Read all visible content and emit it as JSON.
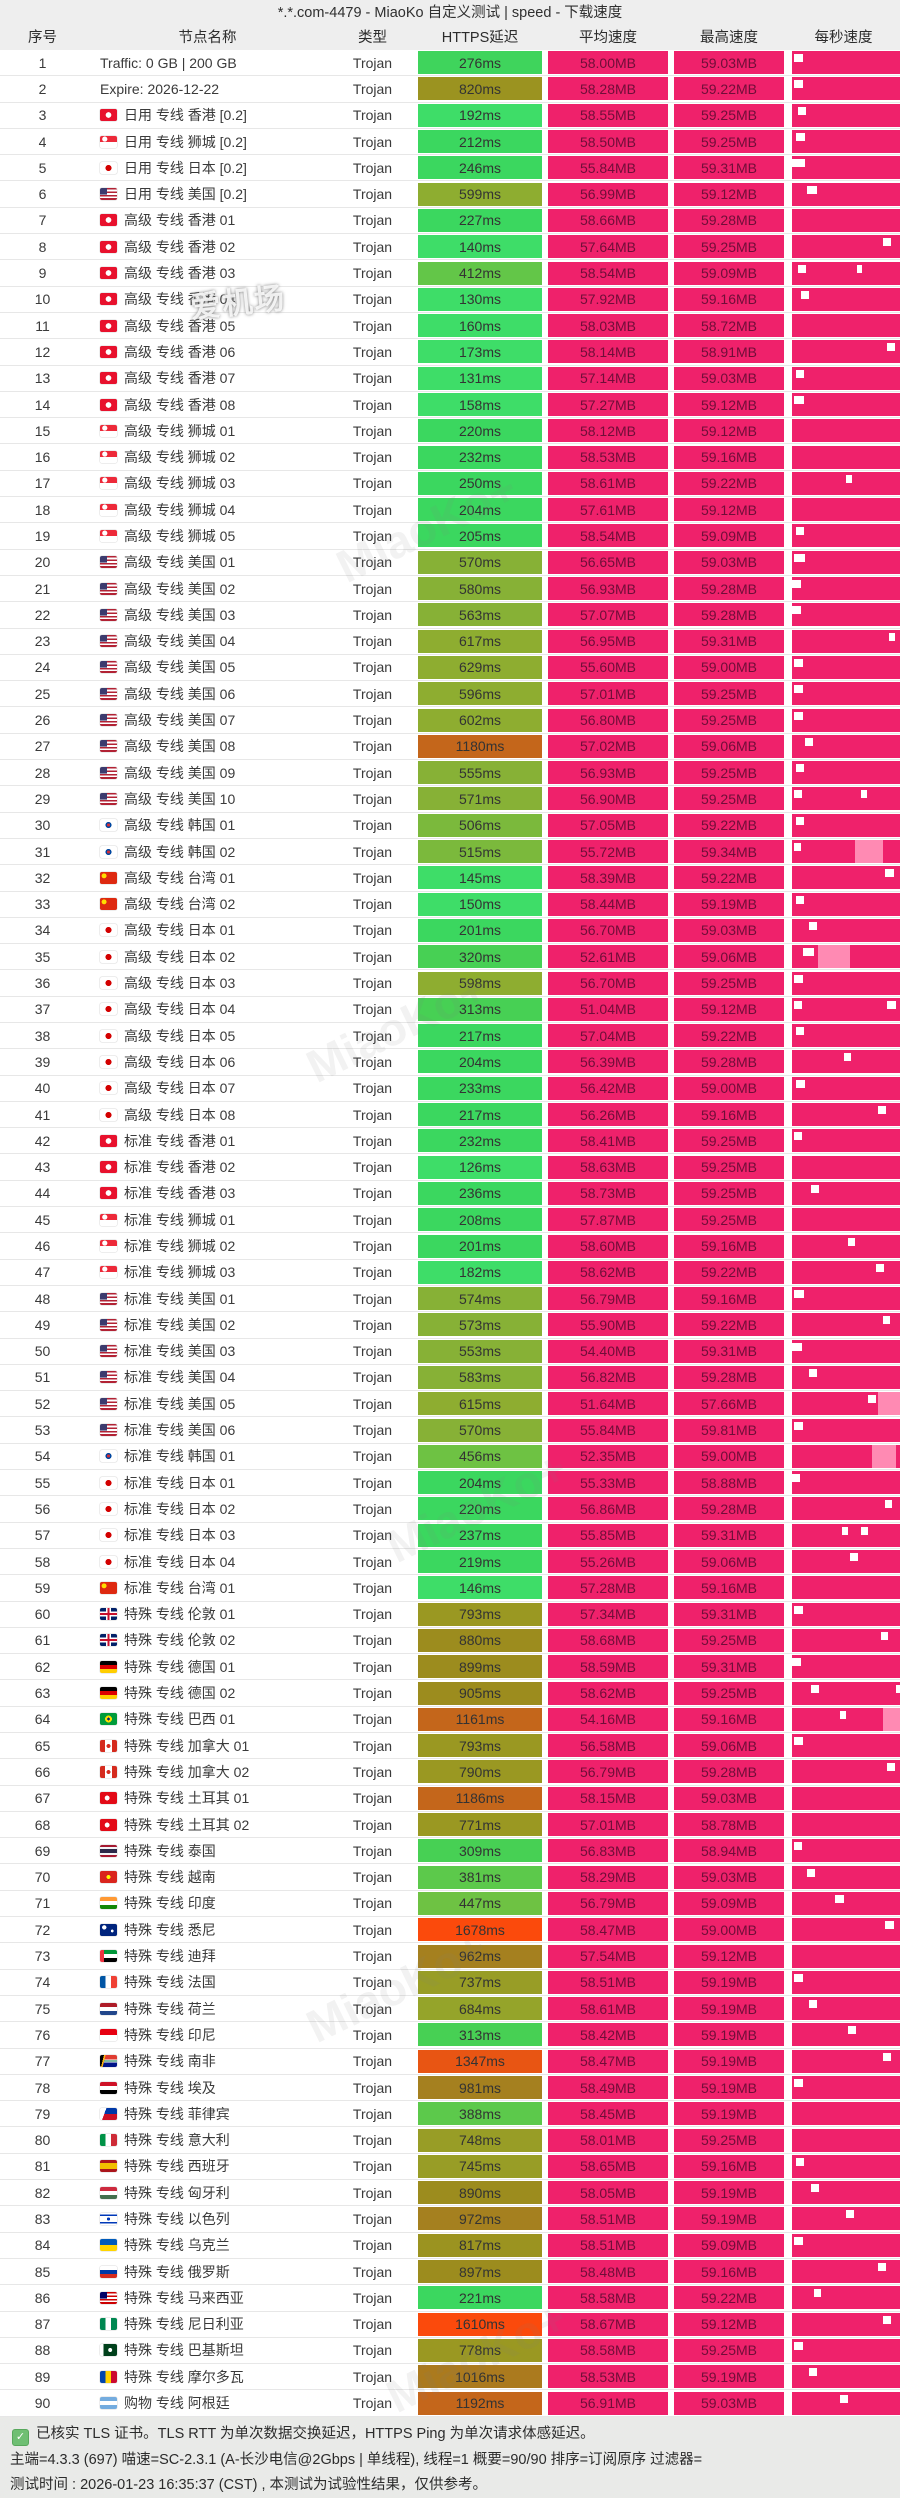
{
  "title": "*.*.com-4479 - MiaoKo 自定义测试 | speed - 下载速度",
  "columns": [
    "序号",
    "节点名称",
    "类型",
    "HTTPS延迟",
    "平均速度",
    "最高速度",
    "每秒速度"
  ],
  "colors": {
    "pink": "#ef216b",
    "pink_text": "#6f0e38",
    "bar_dip": "#ff8ab3",
    "header_bg": "#eeeeee",
    "footer_bg": "#e9eae8",
    "check_green": "#6fbf73"
  },
  "watermarks": {
    "brand": "MiaoKo+",
    "site": "爱机场"
  },
  "footer": {
    "line1": "已核实 TLS 证书。TLS RTT 为单次数据交换延迟，HTTPS Ping 为单次请求体感延迟。",
    "line2": "主端=4.3.3 (697) 喵速=SC-2.3.1 (A-长沙电信@2Gbps | 单线程), 线程=1 概要=90/90 排序=订阅原序 过滤器=",
    "line3": "测试时间 : 2026-01-23 16:35:37 (CST) , 本测试为试验性结果，仅供参考。"
  },
  "rows": [
    [
      "1",
      "",
      "Traffic: 0 GB | 200 GB",
      "Trojan",
      "276ms",
      "#3fd45c",
      "58.00MB",
      "59.03MB",
      [
        [
          2,
          8
        ]
      ],
      []
    ],
    [
      "2",
      "",
      "Expire: 2026-12-22",
      "Trojan",
      "820ms",
      "#9b9320",
      "58.28MB",
      "59.22MB",
      [
        [
          2,
          8
        ]
      ],
      []
    ],
    [
      "3",
      "hk",
      "日用 专线 香港 [0.2]",
      "Trojan",
      "192ms",
      "#3edd68",
      "58.55MB",
      "59.25MB",
      [
        [
          6,
          7
        ]
      ],
      []
    ],
    [
      "4",
      "sg",
      "日用 专线 狮城 [0.2]",
      "Trojan",
      "212ms",
      "#3bd75f",
      "58.50MB",
      "59.25MB",
      [
        [
          4,
          8
        ]
      ],
      []
    ],
    [
      "5",
      "jp",
      "日用 专线 日本 [0.2]",
      "Trojan",
      "246ms",
      "#3bd75f",
      "55.84MB",
      "59.31MB",
      [
        [
          0,
          12
        ]
      ],
      []
    ],
    [
      "6",
      "us",
      "日用 专线 美国 [0.2]",
      "Trojan",
      "599ms",
      "#8ead30",
      "56.99MB",
      "59.12MB",
      [
        [
          14,
          9
        ]
      ],
      []
    ],
    [
      "7",
      "hk",
      "高级 专线 香港 01",
      "Trojan",
      "227ms",
      "#3bd75f",
      "58.66MB",
      "59.28MB",
      [],
      []
    ],
    [
      "8",
      "hk",
      "高级 专线 香港 02",
      "Trojan",
      "140ms",
      "#3edd68",
      "57.64MB",
      "59.25MB",
      [
        [
          84,
          8
        ]
      ],
      []
    ],
    [
      "9",
      "hk",
      "高级 专线 香港 03",
      "Trojan",
      "412ms",
      "#63c648",
      "58.54MB",
      "59.09MB",
      [
        [
          6,
          7
        ],
        [
          60,
          5
        ]
      ],
      []
    ],
    [
      "10",
      "hk",
      "高级 专线 香港 04",
      "Trojan",
      "130ms",
      "#3edd68",
      "57.92MB",
      "59.16MB",
      [
        [
          8,
          8
        ]
      ],
      []
    ],
    [
      "11",
      "hk",
      "高级 专线 香港 05",
      "Trojan",
      "160ms",
      "#3edd68",
      "58.03MB",
      "58.72MB",
      [],
      []
    ],
    [
      "12",
      "hk",
      "高级 专线 香港 06",
      "Trojan",
      "173ms",
      "#3edd68",
      "58.14MB",
      "58.91MB",
      [
        [
          88,
          7
        ]
      ],
      []
    ],
    [
      "13",
      "hk",
      "高级 专线 香港 07",
      "Trojan",
      "131ms",
      "#3edd68",
      "57.14MB",
      "59.03MB",
      [
        [
          4,
          7
        ]
      ],
      []
    ],
    [
      "14",
      "hk",
      "高级 专线 香港 08",
      "Trojan",
      "158ms",
      "#3edd68",
      "57.27MB",
      "59.12MB",
      [
        [
          2,
          9
        ]
      ],
      []
    ],
    [
      "15",
      "sg",
      "高级 专线 狮城 01",
      "Trojan",
      "220ms",
      "#3bd75f",
      "58.12MB",
      "59.12MB",
      [],
      []
    ],
    [
      "16",
      "sg",
      "高级 专线 狮城 02",
      "Trojan",
      "232ms",
      "#3bd75f",
      "58.53MB",
      "59.16MB",
      [],
      []
    ],
    [
      "17",
      "sg",
      "高级 专线 狮城 03",
      "Trojan",
      "250ms",
      "#3bd75f",
      "58.61MB",
      "59.22MB",
      [
        [
          50,
          6
        ]
      ],
      []
    ],
    [
      "18",
      "sg",
      "高级 专线 狮城 04",
      "Trojan",
      "204ms",
      "#3bd75f",
      "57.61MB",
      "59.12MB",
      [],
      []
    ],
    [
      "19",
      "sg",
      "高级 专线 狮城 05",
      "Trojan",
      "205ms",
      "#3bd75f",
      "58.54MB",
      "59.09MB",
      [
        [
          4,
          7
        ]
      ],
      []
    ],
    [
      "20",
      "us",
      "高级 专线 美国 01",
      "Trojan",
      "570ms",
      "#87b136",
      "56.65MB",
      "59.03MB",
      [
        [
          2,
          10
        ]
      ],
      []
    ],
    [
      "21",
      "us",
      "高级 专线 美国 02",
      "Trojan",
      "580ms",
      "#87b136",
      "56.93MB",
      "59.28MB",
      [
        [
          0,
          8
        ]
      ],
      []
    ],
    [
      "22",
      "us",
      "高级 专线 美国 03",
      "Trojan",
      "563ms",
      "#87b136",
      "57.07MB",
      "59.28MB",
      [
        [
          0,
          8
        ]
      ],
      []
    ],
    [
      "23",
      "us",
      "高级 专线 美国 04",
      "Trojan",
      "617ms",
      "#8ead30",
      "56.95MB",
      "59.31MB",
      [
        [
          90,
          5
        ]
      ],
      []
    ],
    [
      "24",
      "us",
      "高级 专线 美国 05",
      "Trojan",
      "629ms",
      "#8ead30",
      "55.60MB",
      "59.00MB",
      [
        [
          2,
          8
        ]
      ],
      []
    ],
    [
      "25",
      "us",
      "高级 专线 美国 06",
      "Trojan",
      "596ms",
      "#8ead30",
      "57.01MB",
      "59.25MB",
      [
        [
          2,
          8
        ]
      ],
      []
    ],
    [
      "26",
      "us",
      "高级 专线 美国 07",
      "Trojan",
      "602ms",
      "#8ead30",
      "56.80MB",
      "59.25MB",
      [
        [
          2,
          8
        ]
      ],
      []
    ],
    [
      "27",
      "us",
      "高级 专线 美国 08",
      "Trojan",
      "1180ms",
      "#c4661b",
      "57.02MB",
      "59.06MB",
      [
        [
          12,
          7
        ]
      ],
      []
    ],
    [
      "28",
      "us",
      "高级 专线 美国 09",
      "Trojan",
      "555ms",
      "#87b136",
      "56.93MB",
      "59.25MB",
      [
        [
          4,
          7
        ]
      ],
      []
    ],
    [
      "29",
      "us",
      "高级 专线 美国 10",
      "Trojan",
      "571ms",
      "#87b136",
      "56.90MB",
      "59.25MB",
      [
        [
          2,
          7
        ],
        [
          64,
          5
        ]
      ],
      []
    ],
    [
      "30",
      "kr",
      "高级 专线 韩国 01",
      "Trojan",
      "506ms",
      "#7bb93c",
      "57.05MB",
      "59.22MB",
      [
        [
          4,
          7
        ]
      ],
      []
    ],
    [
      "31",
      "kr",
      "高级 专线 韩国 02",
      "Trojan",
      "515ms",
      "#7bb93c",
      "55.72MB",
      "59.34MB",
      [
        [
          2,
          6
        ]
      ],
      [
        [
          58,
          26
        ]
      ]
    ],
    [
      "32",
      "cn",
      "高级 专线 台湾 01",
      "Trojan",
      "145ms",
      "#3edd68",
      "58.39MB",
      "59.22MB",
      [
        [
          86,
          8
        ]
      ],
      []
    ],
    [
      "33",
      "cn",
      "高级 专线 台湾 02",
      "Trojan",
      "150ms",
      "#3edd68",
      "58.44MB",
      "59.19MB",
      [
        [
          4,
          7
        ]
      ],
      []
    ],
    [
      "34",
      "jp",
      "高级 专线 日本 01",
      "Trojan",
      "201ms",
      "#3bd75f",
      "56.70MB",
      "59.03MB",
      [
        [
          16,
          7
        ]
      ],
      []
    ],
    [
      "35",
      "jp",
      "高级 专线 日本 02",
      "Trojan",
      "320ms",
      "#47d054",
      "52.61MB",
      "59.06MB",
      [
        [
          10,
          10
        ]
      ],
      [
        [
          24,
          30
        ]
      ]
    ],
    [
      "36",
      "jp",
      "高级 专线 日本 03",
      "Trojan",
      "598ms",
      "#8ead30",
      "56.70MB",
      "59.25MB",
      [
        [
          2,
          8
        ]
      ],
      []
    ],
    [
      "37",
      "jp",
      "高级 专线 日本 04",
      "Trojan",
      "313ms",
      "#47d054",
      "51.04MB",
      "59.12MB",
      [
        [
          2,
          7
        ],
        [
          88,
          8
        ]
      ],
      []
    ],
    [
      "38",
      "jp",
      "高级 专线 日本 05",
      "Trojan",
      "217ms",
      "#3bd75f",
      "57.04MB",
      "59.22MB",
      [
        [
          4,
          7
        ]
      ],
      []
    ],
    [
      "39",
      "jp",
      "高级 专线 日本 06",
      "Trojan",
      "204ms",
      "#3bd75f",
      "56.39MB",
      "59.28MB",
      [
        [
          48,
          7
        ]
      ],
      []
    ],
    [
      "40",
      "jp",
      "高级 专线 日本 07",
      "Trojan",
      "233ms",
      "#3bd75f",
      "56.42MB",
      "59.00MB",
      [
        [
          4,
          8
        ]
      ],
      []
    ],
    [
      "41",
      "jp",
      "高级 专线 日本 08",
      "Trojan",
      "217ms",
      "#3bd75f",
      "56.26MB",
      "59.16MB",
      [
        [
          80,
          7
        ]
      ],
      []
    ],
    [
      "42",
      "hk",
      "标准 专线 香港 01",
      "Trojan",
      "232ms",
      "#3bd75f",
      "58.41MB",
      "59.25MB",
      [
        [
          2,
          7
        ]
      ],
      []
    ],
    [
      "43",
      "hk",
      "标准 专线 香港 02",
      "Trojan",
      "126ms",
      "#3edd68",
      "58.63MB",
      "59.25MB",
      [],
      []
    ],
    [
      "44",
      "hk",
      "标准 专线 香港 03",
      "Trojan",
      "236ms",
      "#3bd75f",
      "58.73MB",
      "59.25MB",
      [
        [
          18,
          7
        ]
      ],
      []
    ],
    [
      "45",
      "sg",
      "标准 专线 狮城 01",
      "Trojan",
      "208ms",
      "#3bd75f",
      "57.87MB",
      "59.25MB",
      [],
      []
    ],
    [
      "46",
      "sg",
      "标准 专线 狮城 02",
      "Trojan",
      "201ms",
      "#3bd75f",
      "58.60MB",
      "59.16MB",
      [
        [
          52,
          6
        ]
      ],
      []
    ],
    [
      "47",
      "sg",
      "标准 专线 狮城 03",
      "Trojan",
      "182ms",
      "#3edd68",
      "58.62MB",
      "59.22MB",
      [
        [
          78,
          7
        ]
      ],
      []
    ],
    [
      "48",
      "us",
      "标准 专线 美国 01",
      "Trojan",
      "574ms",
      "#87b136",
      "56.79MB",
      "59.16MB",
      [
        [
          2,
          9
        ]
      ],
      []
    ],
    [
      "49",
      "us",
      "标准 专线 美国 02",
      "Trojan",
      "573ms",
      "#87b136",
      "55.90MB",
      "59.22MB",
      [
        [
          84,
          7
        ]
      ],
      []
    ],
    [
      "50",
      "us",
      "标准 专线 美国 03",
      "Trojan",
      "553ms",
      "#87b136",
      "54.40MB",
      "59.31MB",
      [
        [
          0,
          9
        ]
      ],
      []
    ],
    [
      "51",
      "us",
      "标准 专线 美国 04",
      "Trojan",
      "583ms",
      "#87b136",
      "56.82MB",
      "59.28MB",
      [
        [
          16,
          7
        ]
      ],
      []
    ],
    [
      "52",
      "us",
      "标准 专线 美国 05",
      "Trojan",
      "615ms",
      "#8ead30",
      "51.64MB",
      "57.66MB",
      [
        [
          70,
          8
        ]
      ],
      [
        [
          80,
          20
        ]
      ]
    ],
    [
      "53",
      "us",
      "标准 专线 美国 06",
      "Trojan",
      "570ms",
      "#87b136",
      "55.84MB",
      "59.81MB",
      [
        [
          2,
          8
        ]
      ],
      []
    ],
    [
      "54",
      "kr",
      "标准 专线 韩国 01",
      "Trojan",
      "456ms",
      "#6ec243",
      "52.35MB",
      "59.00MB",
      [],
      [
        [
          74,
          22
        ]
      ]
    ],
    [
      "55",
      "jp",
      "标准 专线 日本 01",
      "Trojan",
      "204ms",
      "#3bd75f",
      "55.33MB",
      "58.88MB",
      [
        [
          0,
          7
        ]
      ],
      []
    ],
    [
      "56",
      "jp",
      "标准 专线 日本 02",
      "Trojan",
      "220ms",
      "#3bd75f",
      "56.86MB",
      "59.28MB",
      [
        [
          86,
          7
        ]
      ],
      []
    ],
    [
      "57",
      "jp",
      "标准 专线 日本 03",
      "Trojan",
      "237ms",
      "#3bd75f",
      "55.85MB",
      "59.31MB",
      [
        [
          46,
          6
        ],
        [
          64,
          6
        ]
      ],
      []
    ],
    [
      "58",
      "jp",
      "标准 专线 日本 04",
      "Trojan",
      "219ms",
      "#3bd75f",
      "55.26MB",
      "59.06MB",
      [
        [
          54,
          7
        ]
      ],
      []
    ],
    [
      "59",
      "cn",
      "标准 专线 台湾 01",
      "Trojan",
      "146ms",
      "#3edd68",
      "57.28MB",
      "59.16MB",
      [],
      []
    ],
    [
      "60",
      "gb",
      "特殊 专线 伦敦 01",
      "Trojan",
      "793ms",
      "#9a9822",
      "57.34MB",
      "59.31MB",
      [
        [
          2,
          8
        ]
      ],
      []
    ],
    [
      "61",
      "gb",
      "特殊 专线 伦敦 02",
      "Trojan",
      "880ms",
      "#9c8c1e",
      "58.68MB",
      "59.25MB",
      [
        [
          82,
          7
        ]
      ],
      []
    ],
    [
      "62",
      "de",
      "特殊 专线 德国 01",
      "Trojan",
      "899ms",
      "#9c8c1e",
      "58.59MB",
      "59.31MB",
      [
        [
          0,
          8
        ]
      ],
      []
    ],
    [
      "63",
      "de",
      "特殊 专线 德国 02",
      "Trojan",
      "905ms",
      "#9c8c1e",
      "58.62MB",
      "59.25MB",
      [
        [
          18,
          7
        ],
        [
          96,
          4
        ]
      ],
      []
    ],
    [
      "64",
      "br",
      "特殊 专线 巴西 01",
      "Trojan",
      "1161ms",
      "#c4661b",
      "54.16MB",
      "59.16MB",
      [
        [
          44,
          6
        ]
      ],
      [
        [
          84,
          16
        ]
      ]
    ],
    [
      "65",
      "ca",
      "特殊 专线 加拿大 01",
      "Trojan",
      "793ms",
      "#9a9822",
      "56.58MB",
      "59.06MB",
      [
        [
          2,
          8
        ]
      ],
      []
    ],
    [
      "66",
      "ca",
      "特殊 专线 加拿大 02",
      "Trojan",
      "790ms",
      "#9a9822",
      "56.79MB",
      "59.28MB",
      [
        [
          88,
          7
        ]
      ],
      []
    ],
    [
      "67",
      "tr",
      "特殊 专线 土耳其 01",
      "Trojan",
      "1186ms",
      "#c4661b",
      "58.15MB",
      "59.03MB",
      [],
      []
    ],
    [
      "68",
      "tr",
      "特殊 专线 土耳其 02",
      "Trojan",
      "771ms",
      "#9a9822",
      "57.01MB",
      "58.78MB",
      [],
      []
    ],
    [
      "69",
      "th",
      "特殊 专线 泰国",
      "Trojan",
      "309ms",
      "#47d054",
      "56.83MB",
      "58.94MB",
      [
        [
          2,
          7
        ]
      ],
      []
    ],
    [
      "70",
      "vn",
      "特殊 专线 越南",
      "Trojan",
      "381ms",
      "#5cc94b",
      "58.29MB",
      "59.03MB",
      [
        [
          14,
          7
        ]
      ],
      []
    ],
    [
      "71",
      "in",
      "特殊 专线 印度",
      "Trojan",
      "447ms",
      "#6ec243",
      "56.79MB",
      "59.09MB",
      [
        [
          40,
          8
        ]
      ],
      []
    ],
    [
      "72",
      "au",
      "特殊 专线 悉尼",
      "Trojan",
      "1678ms",
      "#fb4a0c",
      "58.47MB",
      "59.00MB",
      [
        [
          86,
          8
        ]
      ],
      []
    ],
    [
      "73",
      "ae",
      "特殊 专线 迪拜",
      "Trojan",
      "962ms",
      "#a5801f",
      "57.54MB",
      "59.12MB",
      [],
      []
    ],
    [
      "74",
      "fr",
      "特殊 专线 法国",
      "Trojan",
      "737ms",
      "#989d26",
      "58.51MB",
      "59.19MB",
      [
        [
          2,
          8
        ]
      ],
      []
    ],
    [
      "75",
      "nl",
      "特殊 专线 荷兰",
      "Trojan",
      "684ms",
      "#95a42a",
      "58.61MB",
      "59.19MB",
      [
        [
          16,
          7
        ]
      ],
      []
    ],
    [
      "76",
      "id",
      "特殊 专线 印尼",
      "Trojan",
      "313ms",
      "#47d054",
      "58.42MB",
      "59.19MB",
      [
        [
          52,
          7
        ]
      ],
      []
    ],
    [
      "77",
      "za",
      "特殊 专线 南非",
      "Trojan",
      "1347ms",
      "#e85513",
      "58.47MB",
      "59.19MB",
      [
        [
          84,
          8
        ]
      ],
      []
    ],
    [
      "78",
      "eg",
      "特殊 专线 埃及",
      "Trojan",
      "981ms",
      "#a5801f",
      "58.49MB",
      "59.19MB",
      [
        [
          2,
          8
        ]
      ],
      []
    ],
    [
      "79",
      "ph",
      "特殊 专线 菲律宾",
      "Trojan",
      "388ms",
      "#5cc94b",
      "58.45MB",
      "59.19MB",
      [],
      []
    ],
    [
      "80",
      "it",
      "特殊 专线 意大利",
      "Trojan",
      "748ms",
      "#989d26",
      "58.01MB",
      "59.25MB",
      [],
      []
    ],
    [
      "81",
      "es",
      "特殊 专线 西班牙",
      "Trojan",
      "745ms",
      "#989d26",
      "58.65MB",
      "59.16MB",
      [
        [
          4,
          7
        ]
      ],
      []
    ],
    [
      "82",
      "hu",
      "特殊 专线 匈牙利",
      "Trojan",
      "890ms",
      "#9c8c1e",
      "58.05MB",
      "59.19MB",
      [
        [
          18,
          7
        ]
      ],
      []
    ],
    [
      "83",
      "il",
      "特殊 专线 以色列",
      "Trojan",
      "972ms",
      "#a5801f",
      "58.51MB",
      "59.19MB",
      [
        [
          50,
          7
        ]
      ],
      []
    ],
    [
      "84",
      "ua",
      "特殊 专线 乌克兰",
      "Trojan",
      "817ms",
      "#9b9320",
      "58.51MB",
      "59.09MB",
      [
        [
          2,
          8
        ]
      ],
      []
    ],
    [
      "85",
      "ru",
      "特殊 专线 俄罗斯",
      "Trojan",
      "897ms",
      "#9c8c1e",
      "58.48MB",
      "59.16MB",
      [
        [
          80,
          7
        ]
      ],
      []
    ],
    [
      "86",
      "my",
      "特殊 专线 马来西亚",
      "Trojan",
      "221ms",
      "#3bd75f",
      "58.58MB",
      "59.22MB",
      [
        [
          20,
          7
        ]
      ],
      []
    ],
    [
      "87",
      "ng",
      "特殊 专线 尼日利亚",
      "Trojan",
      "1610ms",
      "#fb4a0c",
      "58.67MB",
      "59.12MB",
      [
        [
          84,
          8
        ]
      ],
      []
    ],
    [
      "88",
      "pk",
      "特殊 专线 巴基斯坦",
      "Trojan",
      "778ms",
      "#9a9822",
      "58.58MB",
      "59.25MB",
      [
        [
          2,
          8
        ]
      ],
      []
    ],
    [
      "89",
      "md",
      "特殊 专线 摩尔多瓦",
      "Trojan",
      "1016ms",
      "#ab7a1e",
      "58.53MB",
      "59.19MB",
      [
        [
          16,
          7
        ]
      ],
      []
    ],
    [
      "90",
      "ar",
      "购物 专线 阿根廷",
      "Trojan",
      "1192ms",
      "#c4661b",
      "56.91MB",
      "59.03MB",
      [
        [
          44,
          8
        ]
      ],
      []
    ]
  ]
}
